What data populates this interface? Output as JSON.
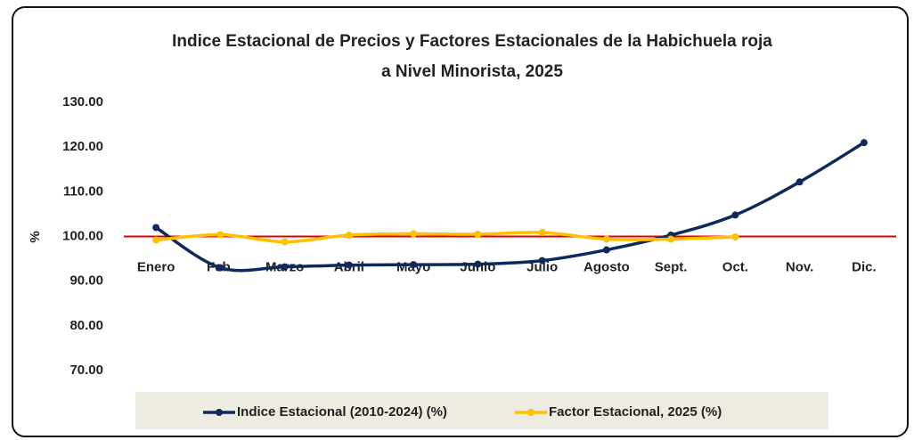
{
  "chart_data": {
    "type": "line",
    "title": [
      "Indice Estacional de Precios y Factores Estacionales de la Habichuela roja",
      "a Nivel Minorista, 2025"
    ],
    "y_label": "%",
    "categories": [
      "Enero",
      "Feb.",
      "Marzo",
      "Abril",
      "Mayo",
      "Junio",
      "Julio",
      "Agosto",
      "Sept.",
      "Oct.",
      "Nov.",
      "Dic."
    ],
    "series": [
      {
        "name": "Indice Estacional (2010-2024) (%)",
        "color": "#0e2a5c",
        "values": [
          102.0,
          93.0,
          93.2,
          93.6,
          93.7,
          93.8,
          94.6,
          97.0,
          100.3,
          104.8,
          112.2,
          121.0
        ]
      },
      {
        "name": "Factor Estacional, 2025 (%)",
        "color": "#ffc000",
        "values": [
          99.2,
          100.4,
          98.8,
          100.3,
          100.6,
          100.5,
          100.9,
          99.4,
          99.4,
          99.9,
          null,
          null
        ]
      }
    ],
    "ylim": [
      70,
      130
    ],
    "yticks": [
      {
        "value": 70,
        "label": "70.00"
      },
      {
        "value": 80,
        "label": "80.00"
      },
      {
        "value": 90,
        "label": "90.00"
      },
      {
        "value": 100,
        "label": "100.00"
      },
      {
        "value": 110,
        "label": "110.00"
      },
      {
        "value": 120,
        "label": "120.00"
      },
      {
        "value": 130,
        "label": "130.00"
      }
    ],
    "reference_line": {
      "value": 100,
      "color": "#e00000"
    },
    "smooth": true,
    "legend": "bottom"
  }
}
